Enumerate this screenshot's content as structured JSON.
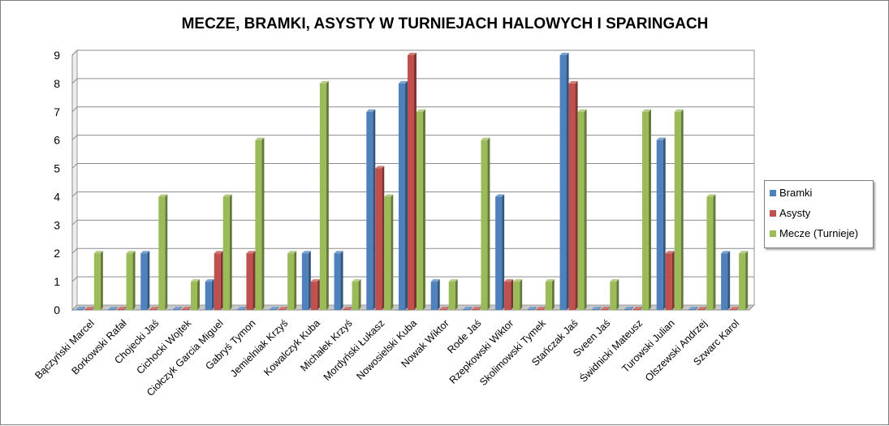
{
  "chart_data": {
    "type": "bar",
    "title": "MECZE, BRAMKI, ASYSTY W TURNIEJACH HALOWYCH I SPARINGACH",
    "categories": [
      "Bączyński Marcel",
      "Borkowski Rafał",
      "Chojecki Jaś",
      "Cichocki Wojtek",
      "Ciołczyk Garcia Miguel",
      "Gabryś Tymon",
      "Jemielniak Krzyś",
      "Kowalczyk Kuba",
      "Michałek Krzyś",
      "Mordyński Łukasz",
      "Nowosielski Kuba",
      "Nowak Wiktor",
      "Rode Jaś",
      "Rzepkowski Wiktor",
      "Skolimowski Tymek",
      "Stańczak Jaś",
      "Sveen Jaś",
      "Świdnicki Mateusz",
      "Turowski Julian",
      "Olszewski Andrzej",
      "Szwarc Karol"
    ],
    "series": [
      {
        "name": "Bramki",
        "color": "#4f81bd",
        "values": [
          0,
          0,
          2,
          0,
          1,
          0,
          0,
          2,
          2,
          7,
          8,
          1,
          0,
          4,
          0,
          9,
          0,
          0,
          6,
          0,
          2
        ]
      },
      {
        "name": "Asysty",
        "color": "#c0504d",
        "values": [
          0,
          0,
          0,
          0,
          2,
          2,
          0,
          1,
          0,
          5,
          9,
          0,
          0,
          1,
          0,
          8,
          0,
          0,
          2,
          0,
          0
        ]
      },
      {
        "name": "Mecze (Turnieje)",
        "color": "#9bbb59",
        "values": [
          2,
          2,
          4,
          1,
          4,
          6,
          2,
          8,
          1,
          4,
          7,
          1,
          6,
          1,
          1,
          7,
          1,
          7,
          7,
          4,
          2
        ]
      }
    ],
    "ylim": [
      0,
      9
    ],
    "yticks": [
      "0",
      "1",
      "2",
      "3",
      "4",
      "5",
      "6",
      "7",
      "8",
      "9"
    ],
    "grid": true,
    "legend_position": "right"
  }
}
